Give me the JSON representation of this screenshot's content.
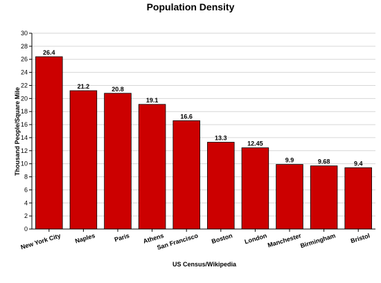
{
  "chart_data": {
    "type": "bar",
    "title": "Population Density",
    "xlabel": "US Census/Wikipedia",
    "ylabel": "Thousand People/Square Mile",
    "categories": [
      "New York City",
      "Naples",
      "Paris",
      "Athens",
      "San Francisco",
      "Boston",
      "London",
      "Manchester",
      "Birmingham",
      "Bristol"
    ],
    "values": [
      26.4,
      21.2,
      20.8,
      19.1,
      16.6,
      13.3,
      12.45,
      9.9,
      9.68,
      9.4
    ],
    "value_labels": [
      "26.4",
      "21.2",
      "20.8",
      "19.1",
      "16.6",
      "13.3",
      "12.45",
      "9.9",
      "9.68",
      "9.4"
    ],
    "ylim": [
      0,
      30
    ],
    "yticks": [
      0,
      2,
      4,
      6,
      8,
      10,
      12,
      14,
      16,
      18,
      20,
      22,
      24,
      26,
      28,
      30
    ],
    "grid": true,
    "legend": "none",
    "bar_color": "#cc0000"
  }
}
